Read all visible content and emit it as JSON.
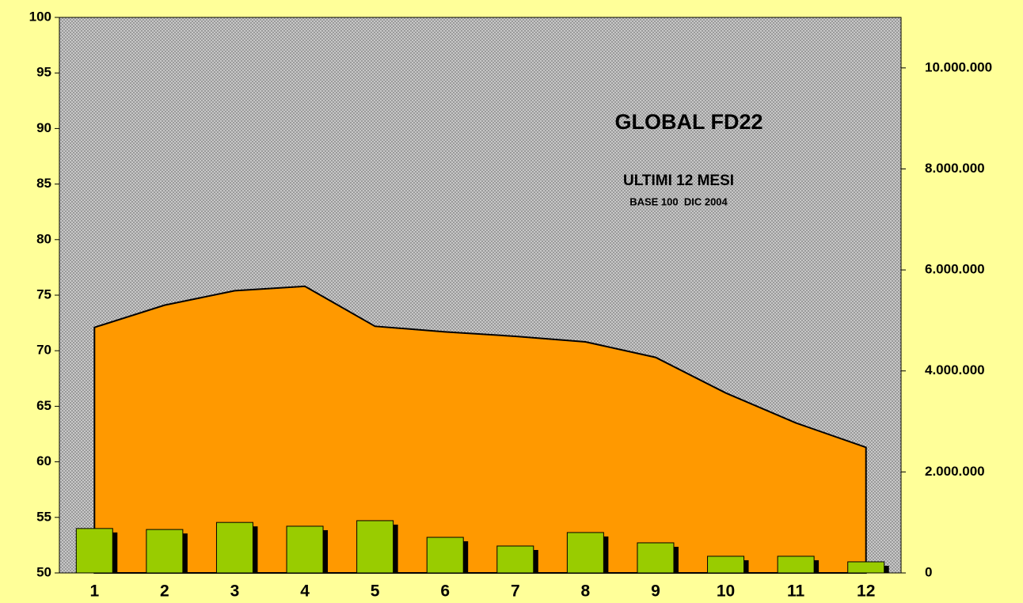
{
  "chart_data": {
    "type": "combo",
    "title": "GLOBAL FD22",
    "subtitle": "ULTIMI 12 MESI",
    "annotation": "BASE 100  DIC 2004",
    "categories": [
      "1",
      "2",
      "3",
      "4",
      "5",
      "6",
      "7",
      "8",
      "9",
      "10",
      "11",
      "12"
    ],
    "series": [
      {
        "type": "area",
        "color": "#ff9900",
        "values": [
          72.1,
          74.1,
          75.4,
          75.8,
          72.2,
          71.7,
          71.3,
          70.8,
          69.4,
          66.2,
          63.5,
          61.3
        ]
      },
      {
        "type": "bar",
        "axis": "y2",
        "color": "#99cc00",
        "values": [
          880000,
          860000,
          1000000,
          925000,
          1035000,
          705000,
          533000,
          800000,
          596000,
          330000,
          330000,
          220000
        ]
      }
    ],
    "ylim": [
      50,
      100
    ],
    "yticks": [
      50,
      55,
      60,
      65,
      70,
      75,
      80,
      85,
      90,
      95,
      100
    ],
    "y2lim": [
      0,
      11000000
    ],
    "y2ticks": [
      0,
      {
        "value": 2000000,
        "label": "2.000.000"
      },
      {
        "value": 4000000,
        "label": "4.000.000"
      },
      {
        "value": 6000000,
        "label": "6.000.000"
      },
      {
        "value": 8000000,
        "label": "8.000.000"
      },
      {
        "value": 10000000,
        "label": "10.000.000"
      }
    ],
    "grid": false
  }
}
